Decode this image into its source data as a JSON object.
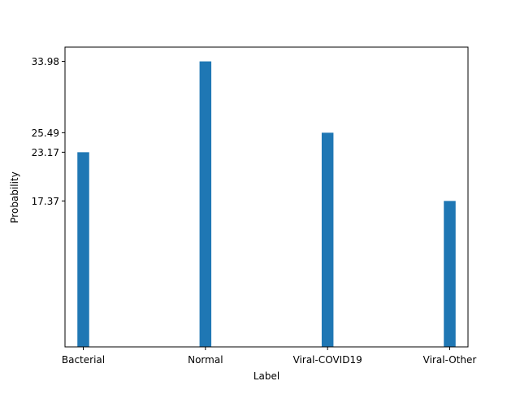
{
  "chart_data": {
    "type": "bar",
    "title": "",
    "xlabel": "Label",
    "ylabel": "Probability",
    "categories": [
      "Bacterial",
      "Normal",
      "Viral-COVID19",
      "Viral-Other"
    ],
    "values": [
      23.17,
      33.98,
      25.49,
      17.37
    ],
    "yticks": [
      "17.37",
      "23.17",
      "25.49",
      "33.98"
    ],
    "ylim": [
      0,
      35.679
    ],
    "grid": false,
    "legend": "none",
    "bar_color": "#1f77b4"
  }
}
